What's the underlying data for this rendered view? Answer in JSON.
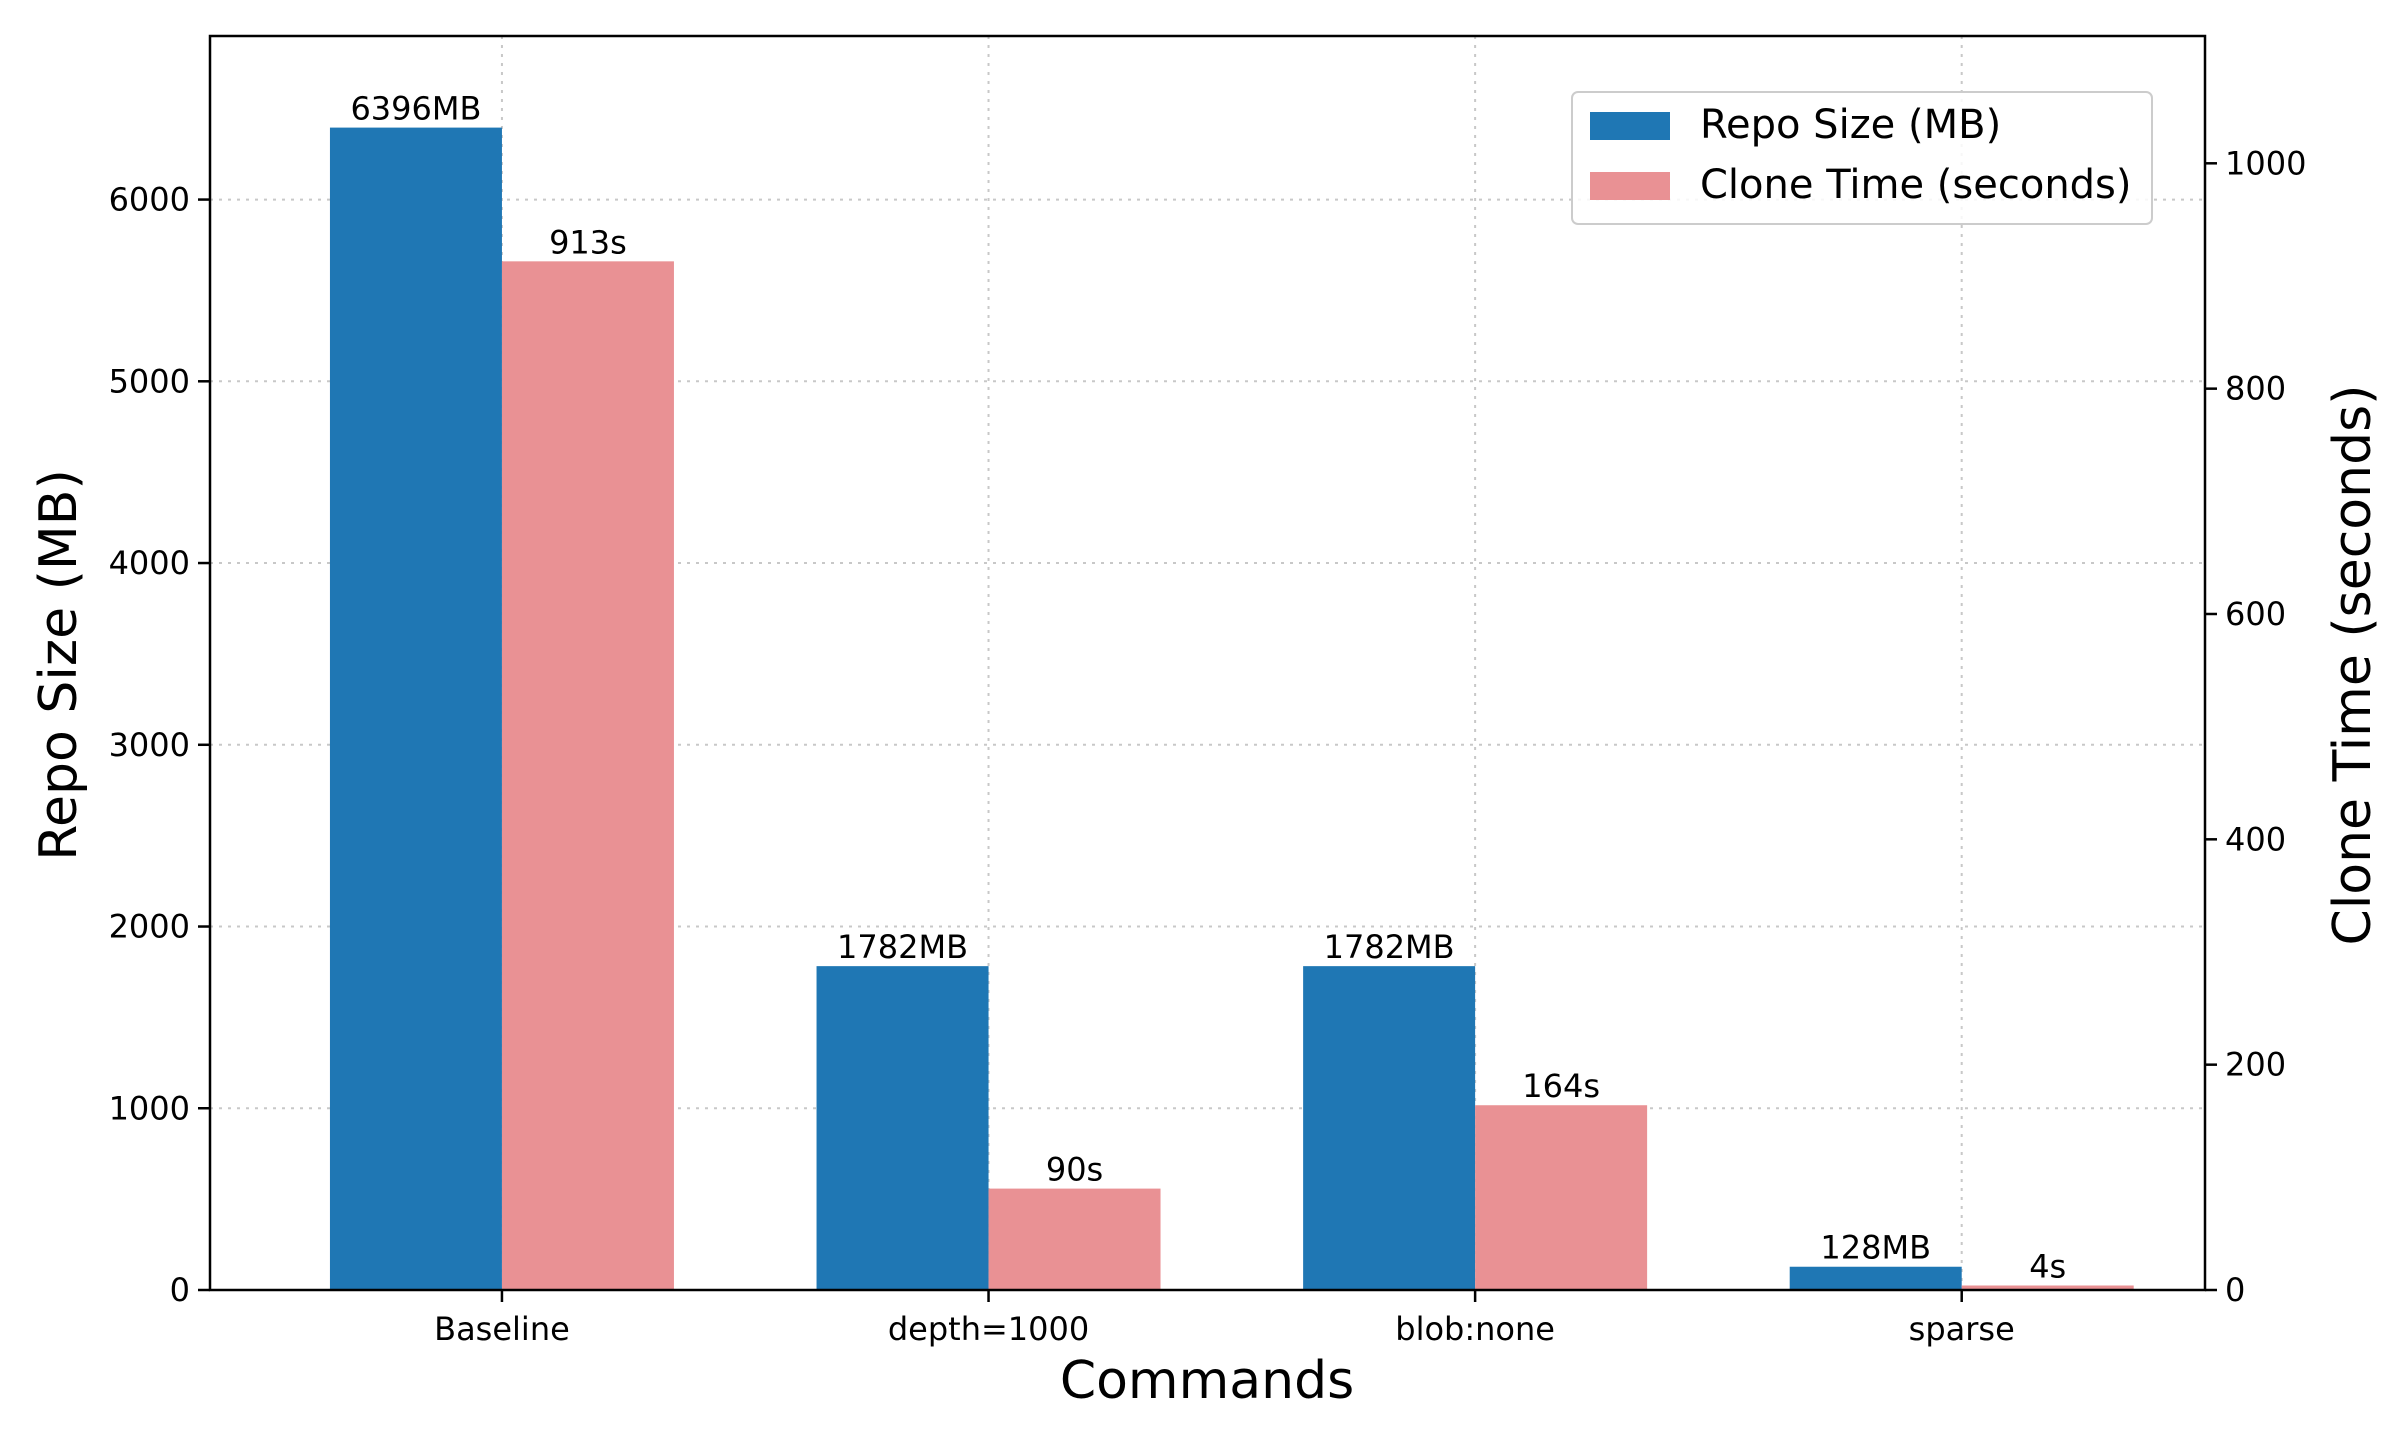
{
  "chart_data": {
    "type": "bar",
    "categories": [
      "Baseline",
      "depth=1000",
      "blob:none",
      "sparse"
    ],
    "series": [
      {
        "name": "Repo Size (MB)",
        "axis": "left",
        "color": "#1f77b4",
        "values": [
          6396,
          1782,
          1782,
          128
        ],
        "labels": [
          "6396MB",
          "1782MB",
          "1782MB",
          "128MB"
        ]
      },
      {
        "name": "Clone Time (seconds)",
        "axis": "right",
        "color": "#e99194",
        "values": [
          913,
          90,
          164,
          4
        ],
        "labels": [
          "913s",
          "90s",
          "164s",
          "4s"
        ]
      }
    ],
    "xlabel": "Commands",
    "ylabel": "Repo Size (MB)",
    "ylabel_right": "Clone Time (seconds)",
    "ylim": [
      0,
      6900
    ],
    "ylim_right": [
      0,
      1113
    ],
    "yticks": [
      0,
      1000,
      2000,
      3000,
      4000,
      5000,
      6000
    ],
    "yticks_right": [
      0,
      200,
      400,
      600,
      800,
      1000
    ],
    "grid": true,
    "legend_position": "top-right"
  }
}
